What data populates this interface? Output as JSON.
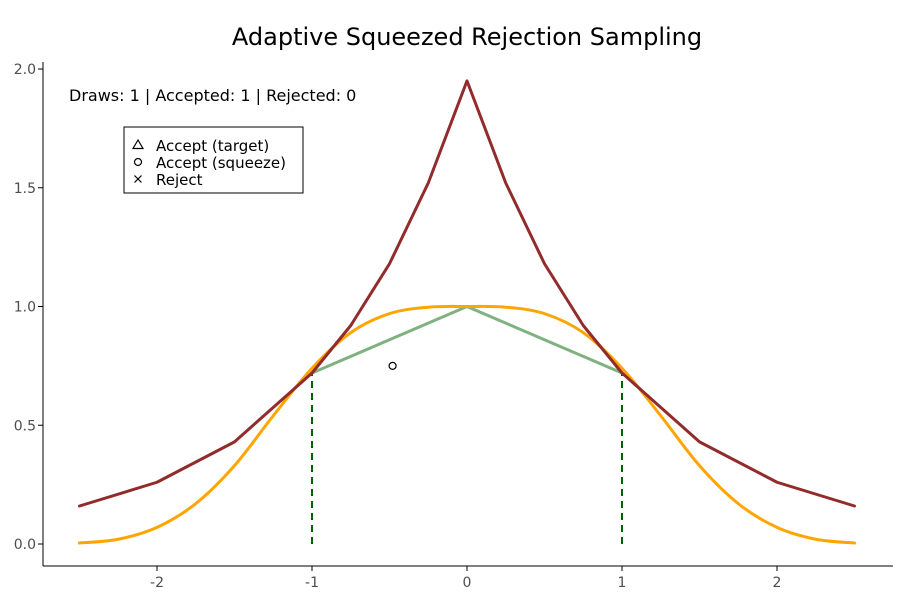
{
  "chart_data": {
    "type": "line",
    "title": "Adaptive Squeezed Rejection Sampling",
    "xlabel": "",
    "ylabel": "",
    "xlim": [
      -2.5,
      2.5
    ],
    "ylim": [
      0,
      2.0
    ],
    "xticks": [
      -2,
      -1,
      0,
      1,
      2
    ],
    "yticks": [
      0.0,
      0.5,
      1.0,
      1.5,
      2.0
    ],
    "xtick_labels": [
      "-2",
      "-1",
      "0",
      "1",
      "2"
    ],
    "ytick_labels": [
      "0.0",
      "0.5",
      "1.0",
      "1.5",
      "2.0"
    ],
    "grid": false,
    "counter_text": "Draws: 1 | Accepted: 1 | Rejected: 0",
    "legend": {
      "placement": "top-left",
      "entries": [
        {
          "marker": "triangle",
          "label": "Accept (target)"
        },
        {
          "marker": "circle",
          "label": "Accept (squeeze)"
        },
        {
          "marker": "cross",
          "label": "Reject"
        }
      ]
    },
    "series": [
      {
        "role": "envelope",
        "color": "#922b2b",
        "x": [
          -2.5,
          -2.0,
          -1.5,
          -1.0,
          -0.75,
          -0.5,
          -0.25,
          0.0,
          0.25,
          0.5,
          0.75,
          1.0,
          1.5,
          2.0,
          2.5
        ],
        "y": [
          0.16,
          0.26,
          0.43,
          0.72,
          0.92,
          1.18,
          1.52,
          1.95,
          1.52,
          1.18,
          0.92,
          0.72,
          0.43,
          0.26,
          0.16
        ]
      },
      {
        "role": "target",
        "color": "#ffa500",
        "x": [
          -2.5,
          -2.25,
          -2.0,
          -1.75,
          -1.5,
          -1.25,
          -1.0,
          -0.75,
          -0.5,
          -0.25,
          0.0,
          0.25,
          0.5,
          0.75,
          1.0,
          1.25,
          1.5,
          1.75,
          2.0,
          2.25,
          2.5
        ],
        "y": [
          0.004,
          0.02,
          0.07,
          0.17,
          0.33,
          0.54,
          0.74,
          0.89,
          0.97,
          0.997,
          1.0,
          0.997,
          0.97,
          0.89,
          0.74,
          0.54,
          0.33,
          0.17,
          0.07,
          0.02,
          0.004
        ]
      },
      {
        "role": "squeeze",
        "color": "#7fb27f",
        "x": [
          -1.0,
          0.0,
          1.0
        ],
        "y": [
          0.72,
          1.0,
          0.72
        ]
      }
    ],
    "vertical_lines": [
      {
        "x": -1.0,
        "y_top": 0.72,
        "color": "#006400"
      },
      {
        "x": 1.0,
        "y_top": 0.72,
        "color": "#006400"
      }
    ],
    "points": [
      {
        "x": -0.48,
        "y": 0.75,
        "marker": "circle"
      }
    ]
  }
}
